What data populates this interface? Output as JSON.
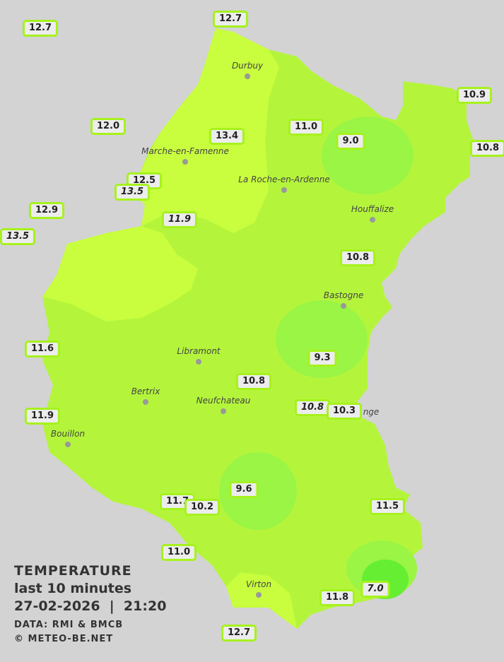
{
  "legend": {
    "title": "TEMPERATURE",
    "subtitle": "last 10 minutes",
    "datetime": "27-02-2026  |  21:20",
    "source": "DATA: RMI & BMCB",
    "copyright": "© METEO-BE.NET"
  },
  "colors": {
    "background": "#d3d3d3",
    "base_fill": "#b4f53c",
    "warm_fill": "#c8fe3e",
    "cool_fill": "#9af545",
    "cold_fill": "#66ee33",
    "station_border": "#a6f21c"
  },
  "cities": [
    "Durbuy",
    "Marche-en-Famenne",
    "La Roche-en-Ardenne",
    "Houffalize",
    "Bastogne",
    "Libramont",
    "Bertrix",
    "Neufchateau",
    "Bouillon",
    "Virton",
    "nge"
  ],
  "stations": [
    {
      "value": "12.7",
      "italic": false
    },
    {
      "value": "12.7",
      "italic": false
    },
    {
      "value": "10.9",
      "italic": false
    },
    {
      "value": "12.0",
      "italic": false
    },
    {
      "value": "13.4",
      "italic": false
    },
    {
      "value": "11.0",
      "italic": false
    },
    {
      "value": "9.0",
      "italic": false
    },
    {
      "value": "10.8",
      "italic": false
    },
    {
      "value": "12.5",
      "italic": false
    },
    {
      "value": "13.5",
      "italic": true
    },
    {
      "value": "12.9",
      "italic": false
    },
    {
      "value": "13.5",
      "italic": true
    },
    {
      "value": "11.9",
      "italic": true
    },
    {
      "value": "10.8",
      "italic": false
    },
    {
      "value": "11.6",
      "italic": false
    },
    {
      "value": "9.3",
      "italic": false
    },
    {
      "value": "10.8",
      "italic": false
    },
    {
      "value": "11.9",
      "italic": false
    },
    {
      "value": "10.8",
      "italic": true
    },
    {
      "value": "10.3",
      "italic": false
    },
    {
      "value": "9.6",
      "italic": false
    },
    {
      "value": "11.7",
      "italic": false
    },
    {
      "value": "10.2",
      "italic": false
    },
    {
      "value": "11.5",
      "italic": false
    },
    {
      "value": "11.0",
      "italic": false
    },
    {
      "value": "7.0",
      "italic": true
    },
    {
      "value": "11.8",
      "italic": false
    },
    {
      "value": "12.7",
      "italic": false
    }
  ]
}
